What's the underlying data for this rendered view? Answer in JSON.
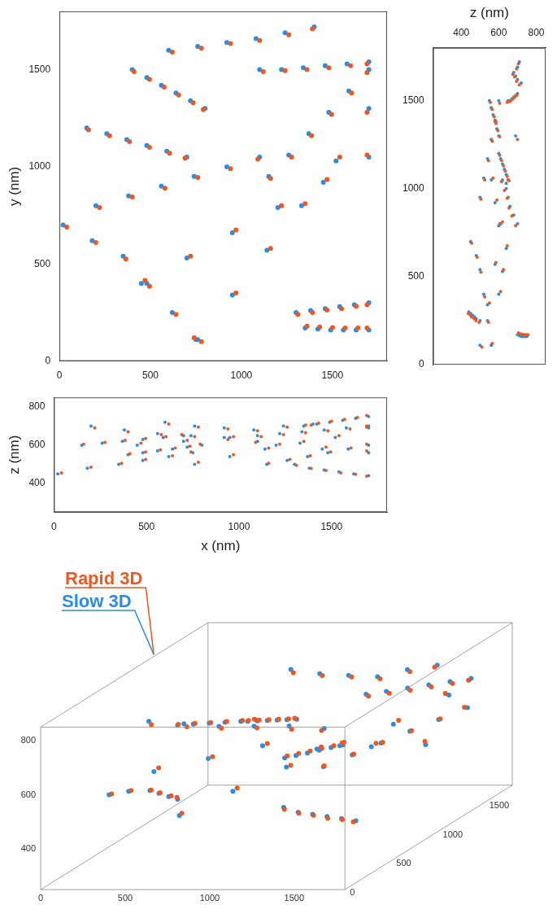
{
  "chart_data": {
    "type": "scatter",
    "xlabel": "x (nm)",
    "ylabel": "y (nm)",
    "zlabel": "z (nm)",
    "xlim": [
      0,
      1800
    ],
    "ylim": [
      0,
      1800
    ],
    "zlim": [
      250,
      850
    ],
    "xticks": [
      0,
      500,
      1000,
      1500
    ],
    "yticks": [
      0,
      500,
      1000,
      1500
    ],
    "zticks": [
      400,
      600,
      800
    ],
    "grid": false,
    "series": [
      {
        "name": "Rapid 3D",
        "color": "#f0561f",
        "x": [
          780,
          970,
          1160,
          1350,
          1540,
          1690,
          470,
          720,
          970,
          1220,
          1470,
          1690,
          220,
          400,
          580,
          760,
          940,
          1090,
          620,
          780,
          940,
          1100,
          1260,
          1390,
          1120,
          1240,
          1360,
          1480,
          1600,
          1690,
          1310,
          1390,
          1470,
          1550,
          1630,
          1690,
          40,
          200,
          365,
          495,
          640,
          740,
          160,
          275,
          385,
          495,
          605,
          690,
          410,
          495,
          575,
          655,
          735,
          790,
          1160,
          1275,
          1385,
          1495,
          1605,
          1690,
          1360,
          1430,
          1500,
          1570,
          1640,
          1690
        ],
        "y": [
          100,
          350,
          580,
          810,
          1050,
          1280,
          415,
          540,
          675,
          800,
          935,
          1060,
          790,
          845,
          890,
          945,
          990,
          1040,
          1590,
          1610,
          1635,
          1650,
          1680,
          1710,
          1490,
          1495,
          1500,
          1510,
          1520,
          1530,
          240,
          250,
          262,
          270,
          282,
          290,
          690,
          610,
          525,
          385,
          240,
          120,
          1190,
          1160,
          1130,
          1100,
          1070,
          1045,
          1490,
          1450,
          1410,
          1370,
          1330,
          1295,
          940,
          1050,
          1160,
          1270,
          1380,
          1485,
          180,
          175,
          172,
          170,
          170,
          170
        ],
        "z": [
          510,
          550,
          585,
          620,
          650,
          700,
          610,
          625,
          645,
          605,
          590,
          570,
          690,
          670,
          655,
          645,
          630,
          615,
          710,
          695,
          685,
          675,
          695,
          705,
          645,
          655,
          665,
          675,
          685,
          695,
          495,
          478,
          468,
          455,
          448,
          438,
          455,
          485,
          505,
          525,
          545,
          565,
          605,
          615,
          625,
          635,
          645,
          655,
          555,
          565,
          575,
          585,
          595,
          605,
          505,
          525,
          545,
          565,
          585,
          605,
          705,
          715,
          725,
          735,
          745,
          755
        ]
      },
      {
        "name": "Slow 3D",
        "color": "#2a8de4",
        "x": [
          760,
          950,
          1140,
          1330,
          1520,
          1700,
          450,
          700,
          950,
          1200,
          1450,
          1700,
          200,
          380,
          560,
          740,
          920,
          1100,
          600,
          760,
          920,
          1080,
          1240,
          1400,
          1100,
          1220,
          1340,
          1460,
          1580,
          1700,
          1300,
          1380,
          1460,
          1540,
          1620,
          1700,
          20,
          180,
          350,
          480,
          620,
          750,
          150,
          260,
          370,
          480,
          590,
          700,
          400,
          480,
          560,
          640,
          720,
          800,
          1150,
          1260,
          1370,
          1480,
          1590,
          1700,
          1350,
          1420,
          1490,
          1560,
          1630,
          1700
        ],
        "y": [
          110,
          340,
          570,
          800,
          1030,
          1300,
          400,
          530,
          660,
          790,
          920,
          1050,
          800,
          850,
          900,
          950,
          1000,
          1050,
          1600,
          1620,
          1640,
          1660,
          1690,
          1720,
          1500,
          1500,
          1510,
          1520,
          1530,
          1540,
          250,
          260,
          270,
          280,
          290,
          300,
          700,
          620,
          540,
          400,
          250,
          110,
          1200,
          1170,
          1140,
          1110,
          1080,
          1050,
          1500,
          1460,
          1420,
          1380,
          1340,
          1300,
          950,
          1060,
          1170,
          1280,
          1390,
          1500,
          170,
          165,
          160,
          160,
          160,
          160
        ],
        "z": [
          500,
          540,
          580,
          610,
          640,
          690,
          600,
          620,
          640,
          600,
          580,
          560,
          700,
          680,
          660,
          650,
          640,
          620,
          720,
          700,
          690,
          680,
          700,
          710,
          650,
          660,
          670,
          680,
          690,
          700,
          500,
          480,
          470,
          460,
          450,
          440,
          450,
          480,
          500,
          520,
          540,
          560,
          600,
          610,
          620,
          630,
          640,
          650,
          550,
          560,
          570,
          580,
          590,
          600,
          500,
          520,
          540,
          560,
          580,
          600,
          700,
          710,
          720,
          730,
          740,
          750
        ]
      }
    ]
  }
}
